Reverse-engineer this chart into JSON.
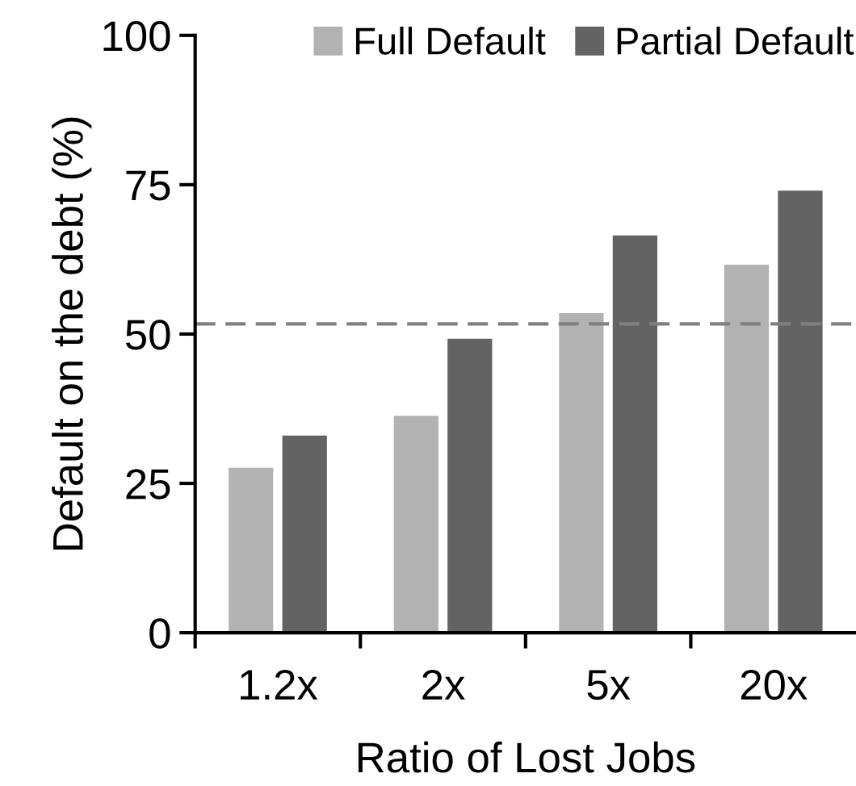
{
  "chart_data": {
    "type": "bar",
    "xlabel": "Ratio of Lost Jobs",
    "ylabel": "Default on the debt (%)",
    "categories": [
      "1.2x",
      "2x",
      "5x",
      "20x"
    ],
    "series": [
      {
        "name": "Full Default",
        "color": "#b2b2b2",
        "values": [
          27.6,
          36.3,
          53.5,
          61.6
        ]
      },
      {
        "name": "Partial Default",
        "color": "#636363",
        "values": [
          33.0,
          49.2,
          66.5,
          74.0
        ]
      }
    ],
    "ylim": [
      0,
      100
    ],
    "yticks": [
      0,
      25,
      50,
      75,
      100
    ],
    "grid": false,
    "legend": "top right",
    "ref_lines": [
      {
        "axis": "y",
        "value": 51.7,
        "color": "#808080",
        "line_style": "dashed"
      }
    ]
  }
}
